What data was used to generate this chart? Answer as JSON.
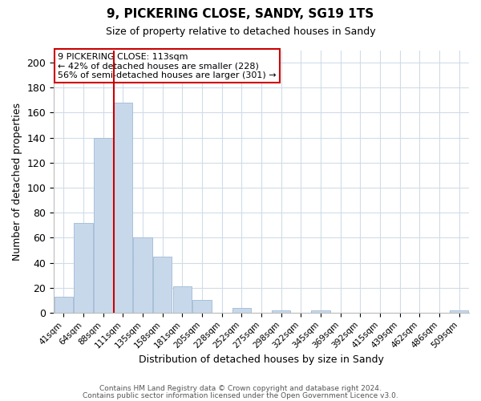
{
  "title": "9, PICKERING CLOSE, SANDY, SG19 1TS",
  "subtitle": "Size of property relative to detached houses in Sandy",
  "xlabel": "Distribution of detached houses by size in Sandy",
  "ylabel": "Number of detached properties",
  "bar_color": "#c8d8eb",
  "bar_edge_color": "#a8c0d8",
  "marker_line_color": "#cc0000",
  "annotation_box_edge": "#cc0000",
  "categories": [
    "41sqm",
    "64sqm",
    "88sqm",
    "111sqm",
    "135sqm",
    "158sqm",
    "181sqm",
    "205sqm",
    "228sqm",
    "252sqm",
    "275sqm",
    "298sqm",
    "322sqm",
    "345sqm",
    "369sqm",
    "392sqm",
    "415sqm",
    "439sqm",
    "462sqm",
    "486sqm",
    "509sqm"
  ],
  "values": [
    13,
    72,
    140,
    168,
    60,
    45,
    21,
    10,
    0,
    4,
    0,
    2,
    0,
    2,
    0,
    0,
    0,
    0,
    0,
    0,
    2
  ],
  "marker_index": 3,
  "annotation_line1": "9 PICKERING CLOSE: 113sqm",
  "annotation_line2": "← 42% of detached houses are smaller (228)",
  "annotation_line3": "56% of semi-detached houses are larger (301) →",
  "ylim": [
    0,
    210
  ],
  "yticks": [
    0,
    20,
    40,
    60,
    80,
    100,
    120,
    140,
    160,
    180,
    200
  ],
  "footer1": "Contains HM Land Registry data © Crown copyright and database right 2024.",
  "footer2": "Contains public sector information licensed under the Open Government Licence v3.0.",
  "background_color": "#ffffff",
  "grid_color": "#d0dce8"
}
